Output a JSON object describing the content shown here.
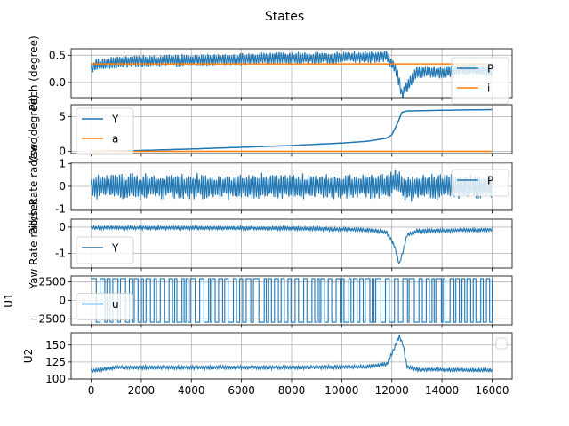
{
  "colors": {
    "blue": "#1f77b4",
    "orange": "#ff7f0e",
    "grid": "#b0b0b0",
    "axis": "#000000"
  },
  "figure": {
    "title": "States"
  },
  "chart_data": [
    {
      "type": "line",
      "ylabel": "Pitch (degree)",
      "xlim": [
        -800,
        16800
      ],
      "ylim": [
        -0.28,
        0.62
      ],
      "yticks": [
        {
          "v": 0.5,
          "label": "0.5"
        },
        {
          "v": 0.0,
          "label": "0.0"
        }
      ],
      "xticks_labeled": false,
      "grid": true,
      "legend": {
        "placement": "right",
        "entries": [
          {
            "label": "P",
            "color": "#1f77b4"
          },
          {
            "label": "i",
            "color": "#ff7f0e"
          }
        ]
      },
      "series": [
        {
          "color": "#1f77b4",
          "x": [
            0,
            250,
            400,
            1000,
            2000,
            3000,
            4000,
            5000,
            6000,
            7000,
            8000,
            9000,
            10000,
            11000,
            11800,
            12200,
            12400,
            13000,
            14000,
            15000,
            16000
          ],
          "y": [
            0.25,
            0.35,
            0.33,
            0.38,
            0.4,
            0.4,
            0.41,
            0.42,
            0.43,
            0.45,
            0.45,
            0.44,
            0.46,
            0.47,
            0.48,
            0.2,
            -0.22,
            0.2,
            0.18,
            0.25,
            0.2
          ],
          "oscillation": 0.12
        },
        {
          "color": "#ff7f0e",
          "x": [
            0,
            16000
          ],
          "y": [
            0.34,
            0.34
          ]
        }
      ]
    },
    {
      "type": "line",
      "ylabel": "Yaw (degree)",
      "xlim": [
        -800,
        16800
      ],
      "ylim": [
        -0.3,
        6.7
      ],
      "yticks": [
        {
          "v": 5,
          "label": "5"
        },
        {
          "v": 0,
          "label": "0"
        }
      ],
      "xticks_labeled": false,
      "grid": true,
      "legend": {
        "placement": "top-left",
        "entries": [
          {
            "label": "Y",
            "color": "#1f77b4"
          },
          {
            "label": "a",
            "color": "#ff7f0e"
          }
        ]
      },
      "series": [
        {
          "color": "#1f77b4",
          "x": [
            0,
            2000,
            4000,
            6000,
            8000,
            10000,
            11000,
            11800,
            12000,
            12200,
            12400,
            12600,
            14000,
            16000
          ],
          "y": [
            0,
            0.15,
            0.35,
            0.6,
            0.85,
            1.2,
            1.45,
            1.9,
            2.4,
            3.8,
            5.6,
            5.8,
            5.9,
            6.0
          ],
          "oscillation": 0
        },
        {
          "color": "#ff7f0e",
          "x": [
            0,
            16000
          ],
          "y": [
            0.02,
            0.02
          ]
        }
      ]
    },
    {
      "type": "line",
      "ylabel": "Pitch Rate rad/sec",
      "xlim": [
        -800,
        16800
      ],
      "ylim": [
        -1.05,
        1.05
      ],
      "yticks": [
        {
          "v": 1,
          "label": "1"
        },
        {
          "v": 0,
          "label": "0"
        },
        {
          "v": -1,
          "label": "-1"
        }
      ],
      "xticks_labeled": false,
      "grid": true,
      "legend": {
        "placement": "right",
        "entries": [
          {
            "label": "P",
            "color": "#1f77b4"
          }
        ]
      },
      "series": [
        {
          "color": "#1f77b4",
          "x": [
            0,
            4000,
            8000,
            11800,
            12200,
            12500,
            13000,
            16000
          ],
          "y": [
            0,
            0,
            0,
            0,
            0.3,
            -0.2,
            0,
            0
          ],
          "oscillation": 0.6
        }
      ]
    },
    {
      "type": "line",
      "ylabel": "Yaw Rate rad/sec",
      "xlim": [
        -800,
        16800
      ],
      "ylim": [
        -1.55,
        0.3
      ],
      "yticks": [
        {
          "v": 0,
          "label": "0"
        },
        {
          "v": -1,
          "label": "-1"
        }
      ],
      "xticks_labeled": false,
      "grid": true,
      "legend": {
        "placement": "bottom-left",
        "entries": [
          {
            "label": "Y",
            "color": "#1f77b4"
          }
        ]
      },
      "series": [
        {
          "color": "#1f77b4",
          "x": [
            0,
            4000,
            8000,
            11000,
            11800,
            12100,
            12300,
            12450,
            12600,
            13000,
            16000
          ],
          "y": [
            -0.02,
            -0.03,
            -0.05,
            -0.1,
            -0.2,
            -0.7,
            -1.4,
            -0.9,
            -0.3,
            -0.15,
            -0.1
          ],
          "oscillation": 0.08
        }
      ]
    },
    {
      "type": "line",
      "ylabel": "U1",
      "xlim": [
        -800,
        16800
      ],
      "ylim": [
        -3300,
        3300
      ],
      "yticks": [
        {
          "v": 2500,
          "label": "2500"
        },
        {
          "v": 0,
          "label": "0"
        },
        {
          "v": -2500,
          "label": "−2500"
        }
      ],
      "xticks_labeled": false,
      "grid": true,
      "legend": {
        "placement": "left",
        "entries": [
          {
            "label": "u",
            "color": "#1f77b4"
          }
        ]
      },
      "series": [
        {
          "color": "#1f77b4",
          "x": [
            0,
            16000
          ],
          "y": [
            0,
            0
          ],
          "oscillation": 2950,
          "square_wave": true
        }
      ]
    },
    {
      "type": "line",
      "ylabel": "U2",
      "xlim": [
        -800,
        16800
      ],
      "ylim": [
        100,
        168
      ],
      "yticks": [
        {
          "v": 150,
          "label": "150"
        },
        {
          "v": 125,
          "label": "125"
        },
        {
          "v": 100,
          "label": "100"
        }
      ],
      "xticks": [
        {
          "v": 0,
          "label": "0"
        },
        {
          "v": 2000,
          "label": "2000"
        },
        {
          "v": 4000,
          "label": "4000"
        },
        {
          "v": 6000,
          "label": "6000"
        },
        {
          "v": 8000,
          "label": "8000"
        },
        {
          "v": 10000,
          "label": "10000"
        },
        {
          "v": 12000,
          "label": "12000"
        },
        {
          "v": 14000,
          "label": "14000"
        },
        {
          "v": 16000,
          "label": "16000"
        }
      ],
      "xticks_labeled": true,
      "grid": true,
      "legend": {
        "placement": "top-right",
        "entries": []
      },
      "series": [
        {
          "color": "#1f77b4",
          "x": [
            0,
            1000,
            4000,
            8000,
            11000,
            11800,
            12100,
            12300,
            12450,
            12600,
            13000,
            16000
          ],
          "y": [
            112,
            117,
            117,
            117,
            118,
            122,
            145,
            163,
            150,
            118,
            114,
            113
          ],
          "oscillation": 3
        }
      ]
    }
  ]
}
